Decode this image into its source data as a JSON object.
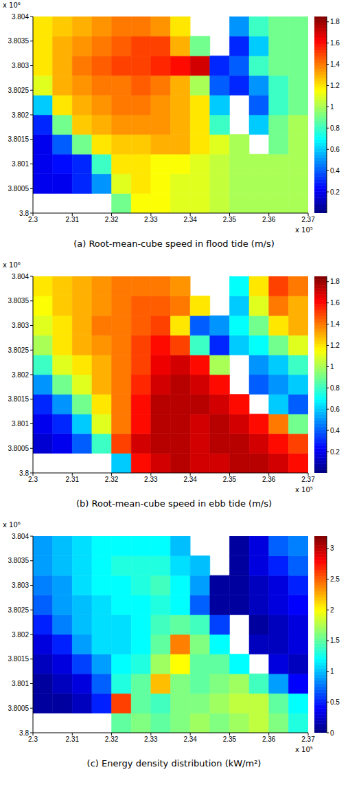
{
  "chart_data": [
    {
      "type": "heatmap",
      "title": "(a) Root-mean-cube speed in flood tide (m/s)",
      "x_offset_label": "x 10⁵",
      "y_offset_label": "x 10⁶",
      "xlim": [
        2.3,
        2.37
      ],
      "xticks": [
        2.3,
        2.31,
        2.32,
        2.33,
        2.34,
        2.35,
        2.36,
        2.37
      ],
      "ylim": [
        3.8,
        3.804
      ],
      "yticks": [
        3.8,
        3.8005,
        3.801,
        3.8015,
        3.802,
        3.8025,
        3.803,
        3.8035,
        3.804
      ],
      "x": [
        2.3025,
        2.3075,
        2.3125,
        2.3175,
        2.3225,
        2.3275,
        2.3325,
        2.3375,
        2.3425,
        2.3475,
        2.3525,
        2.3575,
        2.3625,
        2.3675
      ],
      "y": [
        3.8002,
        3.8006,
        3.801,
        3.8014,
        3.8018,
        3.8022,
        3.8026,
        3.803,
        3.8034,
        3.8038
      ],
      "z": [
        [
          null,
          null,
          null,
          null,
          0.9,
          1.15,
          1.15,
          1.1,
          1.1,
          1.05,
          1.0,
          1.0,
          1.0,
          1.0
        ],
        [
          0.2,
          0.2,
          0.3,
          0.5,
          1.1,
          1.2,
          1.15,
          1.1,
          1.1,
          1.05,
          1.0,
          1.0,
          1.0,
          1.0
        ],
        [
          0.2,
          0.25,
          0.3,
          0.8,
          1.2,
          1.2,
          1.15,
          1.15,
          1.1,
          1.05,
          1.0,
          1.0,
          1.0,
          1.0
        ],
        [
          0.2,
          0.4,
          0.9,
          1.2,
          1.25,
          1.25,
          1.3,
          1.3,
          1.2,
          1.1,
          1.0,
          null,
          0.9,
          1.0
        ],
        [
          0.3,
          0.9,
          1.25,
          1.3,
          1.35,
          1.35,
          1.35,
          1.3,
          1.2,
          0.8,
          null,
          0.6,
          0.9,
          1.0
        ],
        [
          0.6,
          1.2,
          1.3,
          1.35,
          1.4,
          1.4,
          1.35,
          1.3,
          1.2,
          0.6,
          null,
          0.4,
          0.8,
          0.9
        ],
        [
          1.1,
          1.3,
          1.35,
          1.4,
          1.4,
          1.45,
          1.4,
          1.3,
          1.0,
          0.4,
          0.3,
          0.5,
          0.8,
          0.9
        ],
        [
          1.2,
          1.3,
          1.4,
          1.45,
          1.5,
          1.5,
          1.55,
          1.6,
          1.7,
          0.3,
          0.4,
          0.8,
          0.9,
          0.9
        ],
        [
          1.2,
          1.3,
          1.35,
          1.4,
          1.45,
          1.5,
          1.5,
          1.3,
          0.9,
          null,
          0.3,
          0.6,
          0.9,
          0.9
        ],
        [
          1.2,
          1.25,
          1.3,
          1.35,
          1.4,
          1.4,
          1.35,
          1.2,
          null,
          null,
          0.5,
          0.8,
          0.9,
          0.9
        ]
      ],
      "colorbar_range": [
        0,
        1.85
      ],
      "colorbar_ticks": [
        0.2,
        0.4,
        0.6,
        0.8,
        1,
        1.2,
        1.4,
        1.6,
        1.8
      ]
    },
    {
      "type": "heatmap",
      "title": "(b) Root-mean-cube speed in ebb tide (m/s)",
      "x_offset_label": "x 10⁵",
      "y_offset_label": "x 10⁶",
      "xlim": [
        2.3,
        2.37
      ],
      "xticks": [
        2.3,
        2.31,
        2.32,
        2.33,
        2.34,
        2.35,
        2.36,
        2.37
      ],
      "ylim": [
        3.8,
        3.804
      ],
      "yticks": [
        3.8,
        3.8005,
        3.801,
        3.8015,
        3.802,
        3.8025,
        3.803,
        3.8035,
        3.804
      ],
      "x": [
        2.3025,
        2.3075,
        2.3125,
        2.3175,
        2.3225,
        2.3275,
        2.3325,
        2.3375,
        2.3425,
        2.3475,
        2.3525,
        2.3575,
        2.3625,
        2.3675
      ],
      "y": [
        3.8002,
        3.8006,
        3.801,
        3.8014,
        3.8018,
        3.8022,
        3.8026,
        3.803,
        3.8034,
        3.8038
      ],
      "z": [
        [
          null,
          null,
          null,
          null,
          0.6,
          1.6,
          1.7,
          1.75,
          1.7,
          1.7,
          1.75,
          1.75,
          1.7,
          1.6
        ],
        [
          0.15,
          0.2,
          0.4,
          0.8,
          1.5,
          1.7,
          1.75,
          1.75,
          1.7,
          1.75,
          1.75,
          1.7,
          1.6,
          1.5
        ],
        [
          0.2,
          0.3,
          0.6,
          1.1,
          1.4,
          1.6,
          1.75,
          1.75,
          1.7,
          1.75,
          1.7,
          1.6,
          1.4,
          0.9
        ],
        [
          0.3,
          0.5,
          0.9,
          1.2,
          1.4,
          1.6,
          1.75,
          1.75,
          1.75,
          1.7,
          1.6,
          null,
          0.6,
          0.4
        ],
        [
          0.5,
          0.9,
          1.1,
          1.3,
          1.4,
          1.55,
          1.7,
          1.75,
          1.7,
          1.6,
          null,
          0.4,
          0.5,
          0.6
        ],
        [
          0.8,
          1.1,
          1.2,
          1.3,
          1.4,
          1.5,
          1.65,
          1.7,
          1.6,
          1.0,
          null,
          0.5,
          0.6,
          0.8
        ],
        [
          1.0,
          1.2,
          1.3,
          1.35,
          1.4,
          1.5,
          1.6,
          1.5,
          0.8,
          0.3,
          0.6,
          0.7,
          0.9,
          1.1
        ],
        [
          1.1,
          1.2,
          1.3,
          1.4,
          1.4,
          1.45,
          1.5,
          1.2,
          0.4,
          0.5,
          0.7,
          0.9,
          1.2,
          1.3
        ],
        [
          1.15,
          1.25,
          1.3,
          1.35,
          1.4,
          1.45,
          1.45,
          1.4,
          1.2,
          null,
          0.6,
          1.1,
          1.4,
          1.3
        ],
        [
          1.2,
          1.25,
          1.3,
          1.35,
          1.4,
          1.4,
          1.4,
          1.35,
          null,
          null,
          0.7,
          1.2,
          1.5,
          1.4
        ]
      ],
      "colorbar_range": [
        0,
        1.85
      ],
      "colorbar_ticks": [
        0.2,
        0.4,
        0.6,
        0.8,
        1,
        1.2,
        1.4,
        1.6,
        1.8
      ]
    },
    {
      "type": "heatmap",
      "title": "(c) Energy density distribution (kW/m²)",
      "x_offset_label": "x 10⁵",
      "y_offset_label": "x 10⁶",
      "xlim": [
        2.3,
        2.37
      ],
      "xticks": [
        2.3,
        2.31,
        2.32,
        2.33,
        2.34,
        2.35,
        2.36,
        2.37
      ],
      "ylim": [
        3.8,
        3.804
      ],
      "yticks": [
        3.8,
        3.8005,
        3.801,
        3.8015,
        3.802,
        3.8025,
        3.803,
        3.8035,
        3.804
      ],
      "x": [
        2.3025,
        2.3075,
        2.3125,
        2.3175,
        2.3225,
        2.3275,
        2.3325,
        2.3375,
        2.3425,
        2.3475,
        2.3525,
        2.3575,
        2.3625,
        2.3675
      ],
      "y": [
        3.8002,
        3.8006,
        3.801,
        3.8014,
        3.8018,
        3.8022,
        3.8026,
        3.803,
        3.8034,
        3.8038
      ],
      "z": [
        [
          null,
          null,
          null,
          null,
          1.5,
          1.6,
          1.5,
          1.6,
          1.7,
          1.6,
          1.7,
          1.8,
          1.6,
          1.3
        ],
        [
          0.1,
          0.1,
          0.2,
          0.5,
          2.6,
          1.5,
          1.4,
          1.6,
          1.6,
          1.7,
          1.8,
          1.8,
          1.5,
          1.2
        ],
        [
          0.1,
          0.2,
          0.3,
          0.7,
          1.3,
          1.5,
          2.2,
          1.6,
          1.5,
          1.6,
          1.7,
          1.4,
          0.9,
          0.4
        ],
        [
          0.2,
          0.3,
          0.6,
          0.9,
          1.2,
          1.3,
          1.7,
          2.0,
          1.5,
          1.5,
          1.2,
          null,
          0.3,
          0.2
        ],
        [
          0.3,
          0.5,
          0.9,
          1.1,
          1.1,
          1.2,
          1.5,
          2.4,
          1.6,
          1.2,
          null,
          0.2,
          0.2,
          0.3
        ],
        [
          0.5,
          0.8,
          1.0,
          1.1,
          1.1,
          1.2,
          1.4,
          1.5,
          1.4,
          0.6,
          null,
          0.1,
          0.2,
          0.3
        ],
        [
          0.7,
          0.9,
          1.0,
          1.1,
          1.2,
          1.2,
          1.3,
          1.2,
          0.7,
          0.1,
          0.1,
          0.2,
          0.3,
          0.4
        ],
        [
          0.8,
          0.9,
          1.1,
          1.2,
          1.2,
          1.3,
          1.4,
          1.2,
          0.9,
          0.1,
          0.1,
          0.2,
          0.3,
          0.5
        ],
        [
          0.9,
          1.0,
          1.1,
          1.2,
          1.3,
          1.3,
          1.3,
          1.1,
          1.0,
          null,
          0.1,
          0.3,
          0.5,
          0.7
        ],
        [
          0.9,
          1.0,
          1.1,
          1.2,
          1.2,
          1.2,
          1.2,
          1.0,
          null,
          null,
          0.1,
          0.3,
          0.7,
          0.8
        ]
      ],
      "colorbar_range": [
        0,
        3.2
      ],
      "colorbar_ticks": [
        0,
        0.5,
        1,
        1.5,
        2,
        2.5,
        3
      ]
    }
  ]
}
